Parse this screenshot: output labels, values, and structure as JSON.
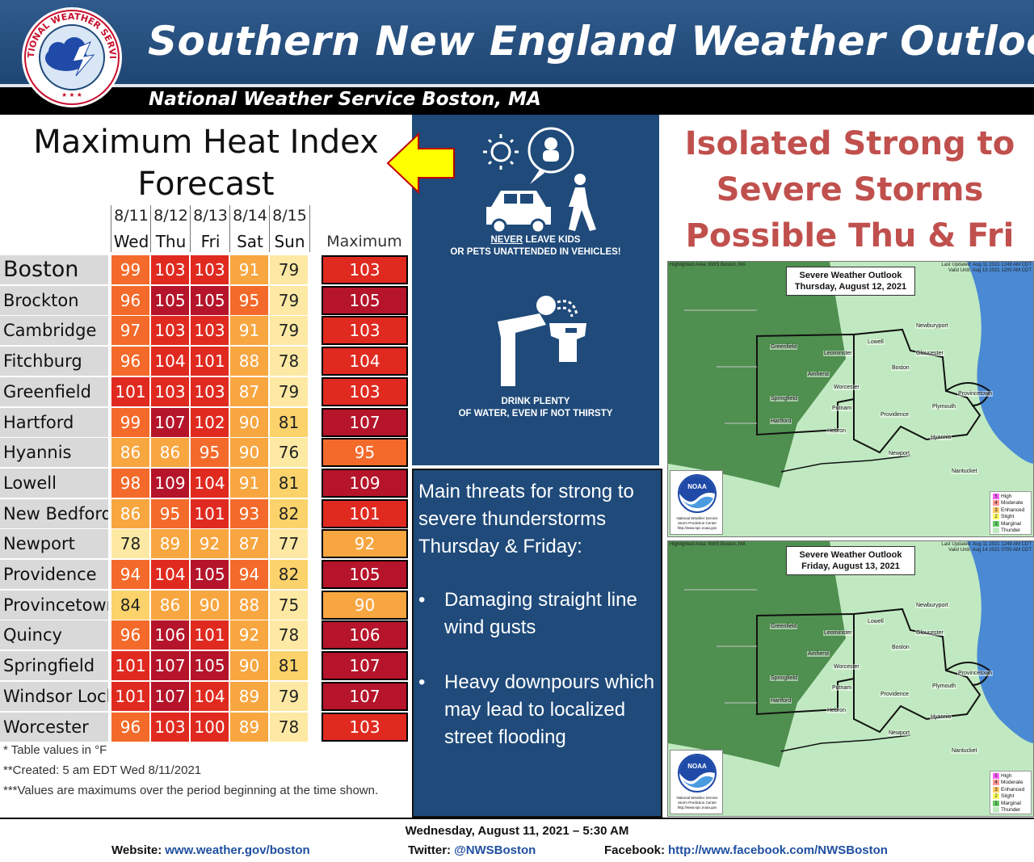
{
  "header": {
    "title": "Southern New England Weather Outlook",
    "subtitle": "National Weather Service Boston, MA",
    "logo_text": "NATIONAL WEATHER SERVICE"
  },
  "heat_table": {
    "title_line1": "Maximum Heat Index",
    "title_line2": "Forecast",
    "dates": [
      "8/11",
      "8/12",
      "8/13",
      "8/14",
      "8/15"
    ],
    "days": [
      "Wed",
      "Thu",
      "Fri",
      "Sat",
      "Sun"
    ],
    "max_label": "Maximum",
    "rows": [
      {
        "city": "Boston",
        "values": [
          99,
          103,
          103,
          91,
          79
        ],
        "max": 103
      },
      {
        "city": "Brockton",
        "values": [
          96,
          105,
          105,
          95,
          79
        ],
        "max": 105
      },
      {
        "city": "Cambridge",
        "values": [
          97,
          103,
          103,
          91,
          79
        ],
        "max": 103
      },
      {
        "city": "Fitchburg",
        "values": [
          96,
          104,
          101,
          88,
          78
        ],
        "max": 104
      },
      {
        "city": "Greenfield",
        "values": [
          101,
          103,
          103,
          87,
          79
        ],
        "max": 103
      },
      {
        "city": "Hartford",
        "values": [
          99,
          107,
          102,
          90,
          81
        ],
        "max": 107
      },
      {
        "city": "Hyannis",
        "values": [
          86,
          86,
          95,
          90,
          76
        ],
        "max": 95
      },
      {
        "city": "Lowell",
        "values": [
          98,
          109,
          104,
          91,
          81
        ],
        "max": 109
      },
      {
        "city": "New Bedford",
        "values": [
          86,
          95,
          101,
          93,
          82
        ],
        "max": 101
      },
      {
        "city": "Newport",
        "values": [
          78,
          89,
          92,
          87,
          77
        ],
        "max": 92
      },
      {
        "city": "Providence",
        "values": [
          94,
          104,
          105,
          94,
          82
        ],
        "max": 105
      },
      {
        "city": "Provincetown",
        "values": [
          84,
          86,
          90,
          88,
          75
        ],
        "max": 90
      },
      {
        "city": "Quincy",
        "values": [
          96,
          106,
          101,
          92,
          78
        ],
        "max": 106
      },
      {
        "city": "Springfield",
        "values": [
          101,
          107,
          105,
          90,
          81
        ],
        "max": 107
      },
      {
        "city": "Windsor Locks",
        "values": [
          101,
          107,
          104,
          89,
          79
        ],
        "max": 107
      },
      {
        "city": "Worcester",
        "values": [
          96,
          103,
          100,
          89,
          78
        ],
        "max": 103
      }
    ],
    "notes": [
      "* Table values in °F",
      "**Created: 5 am EDT Wed 8/11/2021",
      "***Values are maximums over the period beginning at the time shown."
    ]
  },
  "safety": {
    "kids_never": "NEVER",
    "kids_line1_rest": " LEAVE KIDS",
    "kids_line2": "OR PETS UNATTENDED IN VEHICLES!",
    "water_line1": "DRINK PLENTY",
    "water_line2": "OF WATER, EVEN IF NOT THIRSTY"
  },
  "threats": {
    "intro": "Main threats for strong to severe thunderstorms Thursday & Friday:",
    "bullets": [
      "Damaging straight line wind gusts",
      "Heavy downpours which may lead to localized street flooding"
    ]
  },
  "storm_title": {
    "line1": "Isolated Strong to",
    "line2": "Severe Storms",
    "line3": "Possible Thu & Fri"
  },
  "maps": [
    {
      "title_line1": "Severe Weather Outlook",
      "title_line2": "Thursday, August 12, 2021",
      "head_left": "Highlighted Area: NWS Boston, MA",
      "head_right_1": "Last Updated: Aug 11 2021 1249 AM CDT",
      "head_right_2": "Valid Until: Aug 13 2021 1200 AM CDT"
    },
    {
      "title_line1": "Severe Weather Outlook",
      "title_line2": "Friday, August 13, 2021",
      "head_left": "Highlighted Area: NWS Boston, MA",
      "head_right_1": "Last Updated: Aug 11 2021 1249 AM CDT",
      "head_right_2": "Valid Until: Aug 14 2021 0700 AM CDT"
    }
  ],
  "map_towns": [
    "Newburyport",
    "Lowell",
    "Gloucester",
    "Greenfield",
    "Leominster",
    "Amherst",
    "Boston",
    "Worcester",
    "Provincetown",
    "Springfield",
    "Plymouth",
    "Putnam",
    "Hartford",
    "Providence",
    "Hyannis",
    "Hebron",
    "Newport",
    "Nantucket"
  ],
  "noaa": {
    "label": "NOAA",
    "caption_1": "National Weather Service",
    "caption_2": "Storm Prediction Center",
    "caption_3": "http://www.spc.noaa.gov"
  },
  "legend": [
    {
      "num": "5",
      "label": "High",
      "color": "#ff66ff"
    },
    {
      "num": "4",
      "label": "Moderate",
      "color": "#ff9999"
    },
    {
      "num": "3",
      "label": "Enhanced",
      "color": "#ffcc66"
    },
    {
      "num": "2",
      "label": "Slight",
      "color": "#ffff66"
    },
    {
      "num": "1",
      "label": "Marginal",
      "color": "#66cc66"
    },
    {
      "num": "",
      "label": "Thunder",
      "color": "#c1e9c1"
    }
  ],
  "footer": {
    "date": "Wednesday, August 11, 2021 – 5:30 AM",
    "website_label": "Website:",
    "website": "www.weather.gov/boston",
    "twitter_label": "Twitter:",
    "twitter": "@NWSBoston",
    "facebook_label": "Facebook:",
    "facebook": "http://www.facebook.com/NWSBoston"
  },
  "colors": {
    "header_blue": "#2f5b8c",
    "panel_blue": "#1f4a7a",
    "storm_title": "#c0504d",
    "arrow_yellow": "#ffff00",
    "heat_scale": [
      "#fde9a3",
      "#fbd36a",
      "#f8a640",
      "#f46a2a",
      "#e02a20",
      "#b5142a"
    ]
  }
}
